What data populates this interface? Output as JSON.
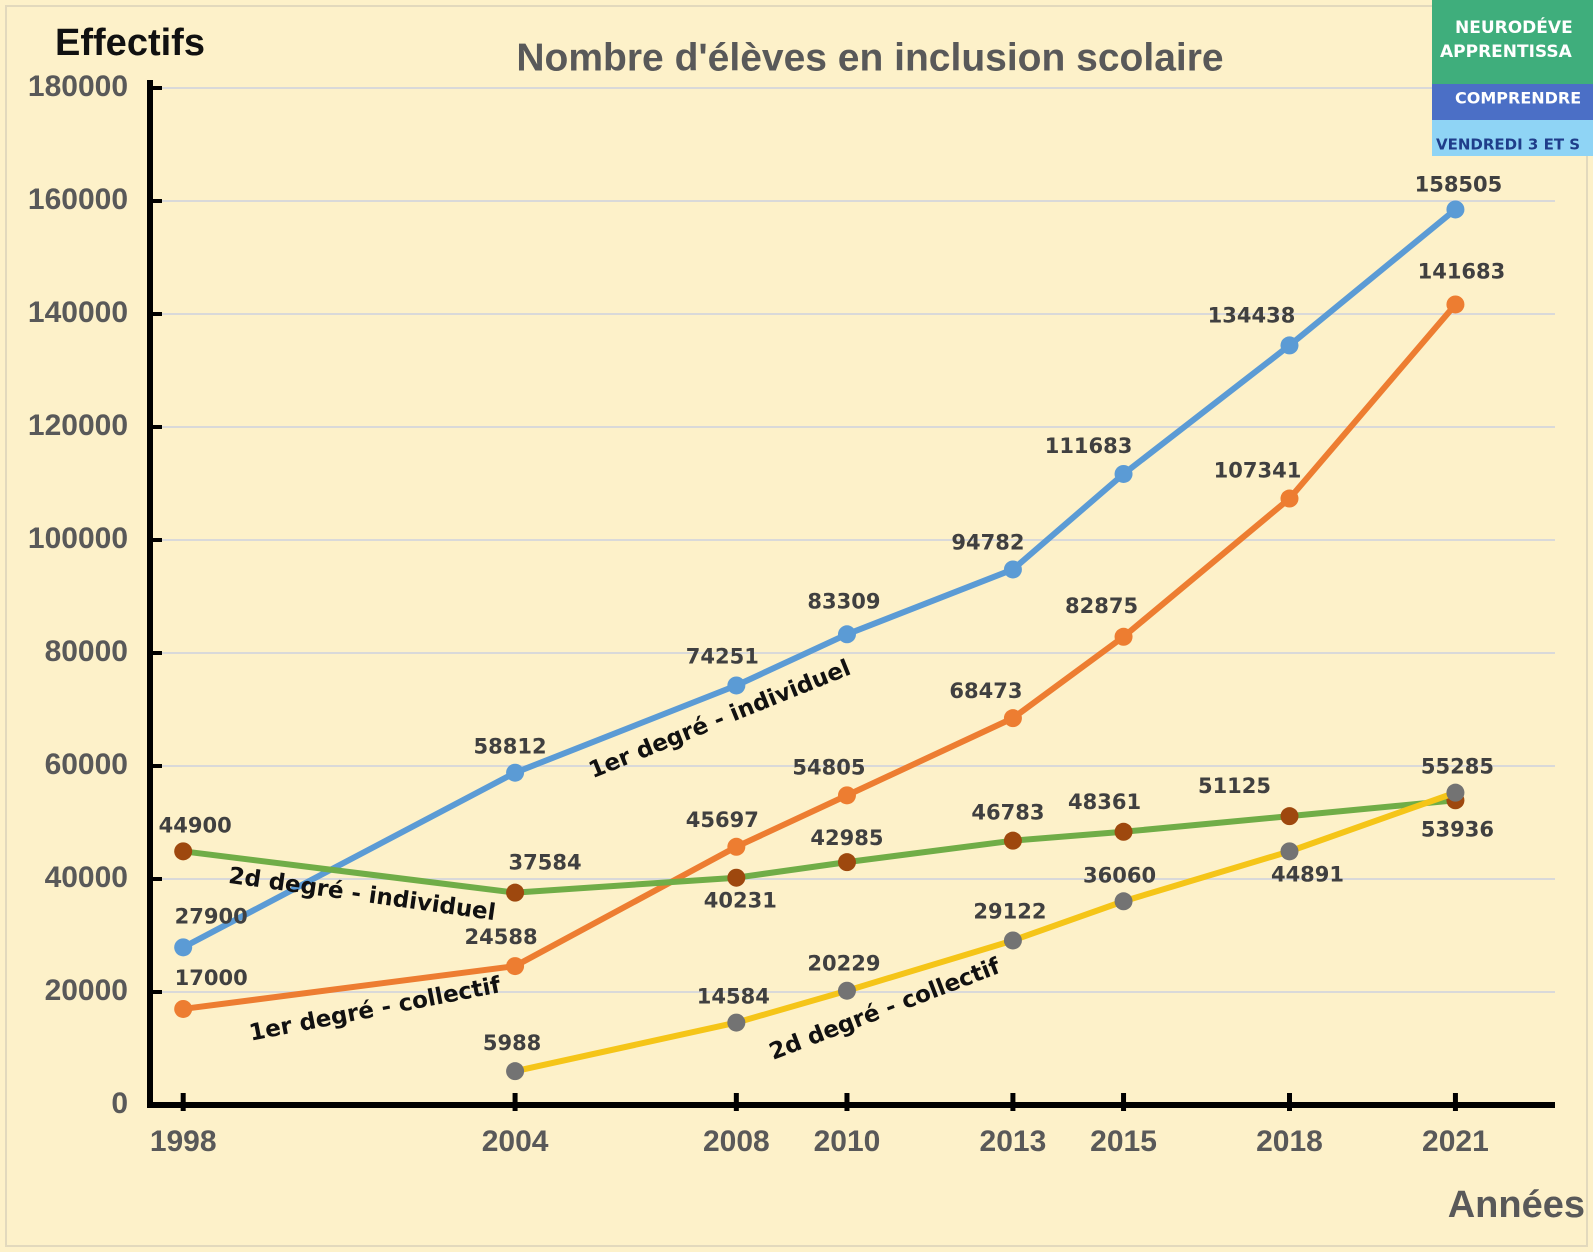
{
  "chart_data": {
    "type": "line",
    "title": "Nombre d'élèves en inclusion scolaire",
    "y_label": "Effectifs",
    "x_label": "Années",
    "x": [
      1998,
      2004,
      2008,
      2010,
      2013,
      2015,
      2018,
      2021
    ],
    "xlim": [
      1997.4,
      2022.8
    ],
    "xticks": [
      1998,
      2004,
      2008,
      2010,
      2013,
      2015,
      2018,
      2021
    ],
    "ylim": [
      0,
      180000
    ],
    "yticks": [
      0,
      20000,
      40000,
      60000,
      80000,
      100000,
      120000,
      140000,
      160000,
      180000
    ],
    "grid": true,
    "series": [
      {
        "name": "1er degré - individuel",
        "color": "#5b9bd5",
        "marker_color": "#5b9bd5",
        "values": [
          27900,
          58812,
          74251,
          83309,
          94782,
          111683,
          134438,
          158505
        ]
      },
      {
        "name": "1er degré - collectif",
        "color": "#ed7d31",
        "marker_color": "#ed7d31",
        "values": [
          17000,
          24588,
          45697,
          54805,
          68473,
          82875,
          107341,
          141683
        ]
      },
      {
        "name": "2d degré - individuel",
        "color": "#70ad47",
        "marker_color": "#9e480e",
        "values": [
          44900,
          37584,
          40231,
          42985,
          46783,
          48361,
          51125,
          53936
        ]
      },
      {
        "name": "2d degré - collectif",
        "color": "#f5c518",
        "marker_color": "#737373",
        "values": [
          null,
          5988,
          14584,
          20229,
          29122,
          36060,
          44891,
          55285
        ]
      }
    ]
  },
  "banner": {
    "lines": [
      "NEURODÉVE",
      "APPRENTISSA",
      "COMPRENDRE",
      "VENDREDI 3 ET S"
    ]
  }
}
